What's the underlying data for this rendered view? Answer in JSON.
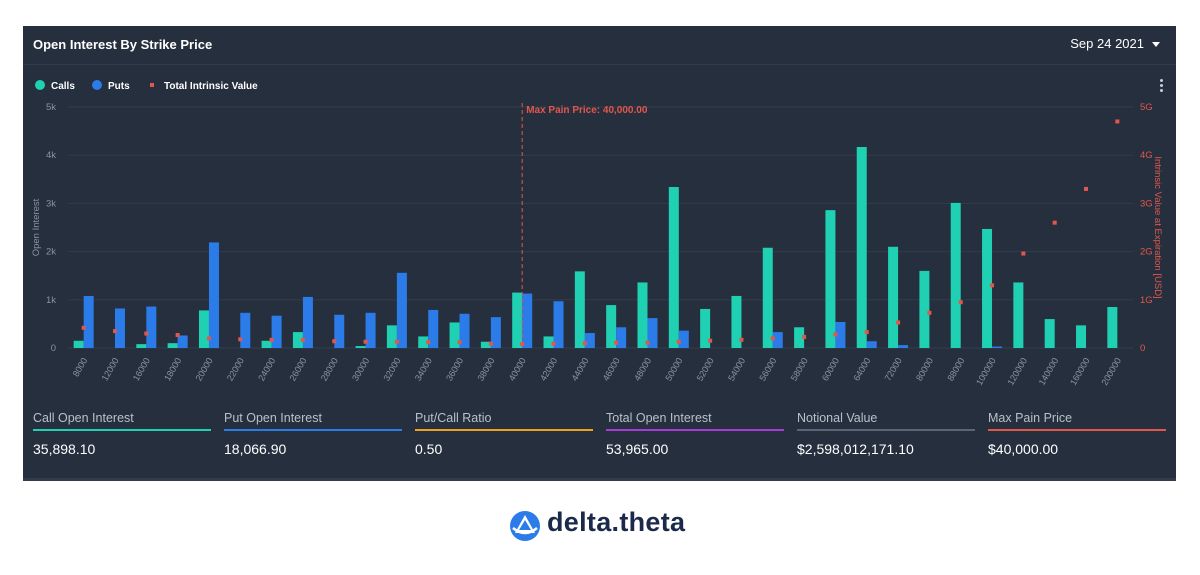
{
  "header": {
    "title": "Open Interest By Strike Price",
    "date": "Sep 24 2021"
  },
  "colors": {
    "calls": "#1fd1b2",
    "puts": "#2b7ce9",
    "intrinsic": "#e2574c",
    "panel": "#262f3d",
    "put_call_bar": "#f0a020",
    "total_oi_bar": "#a83bd6",
    "notional_bar": "#5b6573"
  },
  "chart_data": {
    "type": "bar",
    "title": "Open Interest By Strike Price",
    "legend": [
      "Calls",
      "Puts",
      "Total Intrinsic Value"
    ],
    "legend_position": "top-left",
    "categories": [
      "8000",
      "12000",
      "16000",
      "18000",
      "20000",
      "22000",
      "24000",
      "26000",
      "28000",
      "30000",
      "32000",
      "34000",
      "36000",
      "38000",
      "40000",
      "42000",
      "44000",
      "46000",
      "48000",
      "50000",
      "52000",
      "54000",
      "56000",
      "58000",
      "60000",
      "64000",
      "72000",
      "80000",
      "88000",
      "100000",
      "120000",
      "140000",
      "160000",
      "200000"
    ],
    "series": [
      {
        "name": "Calls",
        "axis": "left",
        "values": [
          150,
          0,
          80,
          100,
          780,
          0,
          150,
          330,
          0,
          40,
          470,
          240,
          530,
          130,
          1150,
          240,
          1590,
          890,
          1360,
          3340,
          810,
          1080,
          2080,
          430,
          2860,
          4170,
          2100,
          1600,
          3010,
          2470,
          1360,
          600,
          470,
          850
        ]
      },
      {
        "name": "Puts",
        "axis": "left",
        "values": [
          1080,
          820,
          860,
          260,
          2190,
          730,
          670,
          1060,
          690,
          730,
          1560,
          790,
          710,
          640,
          1130,
          970,
          310,
          430,
          620,
          360,
          0,
          0,
          330,
          0,
          540,
          140,
          60,
          0,
          0,
          30,
          0,
          0,
          0,
          0
        ]
      },
      {
        "name": "Total Intrinsic Value",
        "axis": "right",
        "type": "scatter",
        "unit": "G",
        "values": [
          0.42,
          0.35,
          0.3,
          0.27,
          0.2,
          0.18,
          0.17,
          0.17,
          0.14,
          0.13,
          0.13,
          0.12,
          0.12,
          0.09,
          0.08,
          0.09,
          0.1,
          0.11,
          0.11,
          0.13,
          0.15,
          0.17,
          0.2,
          0.23,
          0.28,
          0.33,
          0.53,
          0.73,
          0.95,
          1.3,
          1.96,
          2.6,
          3.3,
          4.7
        ]
      }
    ],
    "ylabel": "Open Interest",
    "ylim": [
      0,
      5000
    ],
    "yticks": [
      "0",
      "1k",
      "2k",
      "3k",
      "4k",
      "5k"
    ],
    "y2label": "Intrinsic Value at Expiration [USD]",
    "y2lim": [
      0,
      5
    ],
    "y2ticks": [
      "0",
      "1G",
      "2G",
      "3G",
      "4G",
      "5G"
    ],
    "grid": true,
    "annotation": {
      "text": "Max Pain Price: 40,000.00",
      "x": "40000"
    }
  },
  "stats": [
    {
      "label": "Call Open Interest",
      "value": "35,898.10"
    },
    {
      "label": "Put Open Interest",
      "value": "18,066.90"
    },
    {
      "label": "Put/Call Ratio",
      "value": "0.50"
    },
    {
      "label": "Total Open Interest",
      "value": "53,965.00"
    },
    {
      "label": "Notional Value",
      "value": "$2,598,012,171.10"
    },
    {
      "label": "Max Pain Price",
      "value": "$40,000.00"
    }
  ],
  "brand": {
    "name": "delta.theta"
  }
}
